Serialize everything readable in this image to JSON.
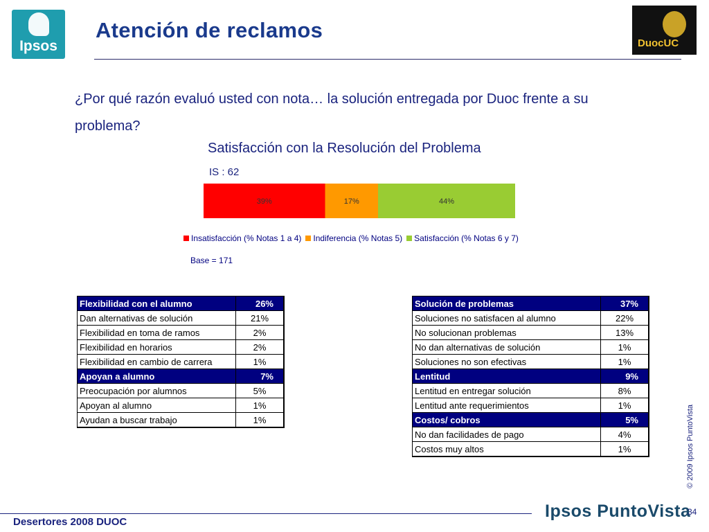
{
  "header": {
    "title": "Atención de reclamos",
    "ipsos_logo_text": "Ipsos",
    "duoc_logo_text": "DuocUC"
  },
  "question": "¿Por qué razón evaluó usted con nota… la solución entregada por Duoc frente a su  problema?",
  "chart_data": {
    "type": "bar",
    "orientation": "horizontal-stacked",
    "title": "Satisfacción con la Resolución del Problema",
    "subtitle": "IS :  62",
    "series": [
      {
        "name": "Insatisfacción (% Notas 1 a 4)",
        "values": [
          39
        ],
        "label": "39%",
        "color": "#ff0000"
      },
      {
        "name": "Indiferencia (% Notas 5)",
        "values": [
          17
        ],
        "label": "17%",
        "color": "#ff9900"
      },
      {
        "name": "Satisfacción (% Notas 6 y 7)",
        "values": [
          44
        ],
        "label": "44%",
        "color": "#99cc33"
      }
    ],
    "xlim": [
      0,
      100
    ],
    "grid": false,
    "legend": "bottom",
    "base": "Base = 171"
  },
  "table_left": {
    "rows": [
      {
        "label": "Flexibilidad con el alumno",
        "value": "26%",
        "header": true
      },
      {
        "label": "Dan alternativas de solución",
        "value": "21%"
      },
      {
        "label": "Flexibilidad en toma de ramos",
        "value": "2%"
      },
      {
        "label": "Flexibilidad en horarios",
        "value": "2%"
      },
      {
        "label": "Flexibilidad en cambio de carrera",
        "value": "1%"
      },
      {
        "label": "Apoyan a alumno",
        "value": "7%",
        "header": true
      },
      {
        "label": "Preocupación por alumnos",
        "value": "5%"
      },
      {
        "label": "Apoyan al alumno",
        "value": "1%"
      },
      {
        "label": "Ayudan a buscar trabajo",
        "value": "1%"
      }
    ]
  },
  "table_right": {
    "rows": [
      {
        "label": "Solución de problemas",
        "value": "37%",
        "header": true
      },
      {
        "label": "Soluciones no satisfacen al alumno",
        "value": "22%"
      },
      {
        "label": "No solucionan problemas",
        "value": "13%"
      },
      {
        "label": "No dan alternativas de solución",
        "value": "1%"
      },
      {
        "label": "Soluciones no son efectivas",
        "value": "1%"
      },
      {
        "label": "Lentitud",
        "value": "9%",
        "header": true
      },
      {
        "label": "Lentitud en entregar solución",
        "value": "8%"
      },
      {
        "label": "Lentitud ante requerimientos",
        "value": "1%"
      },
      {
        "label": "Costos/ cobros",
        "value": "5%",
        "header": true
      },
      {
        "label": "No dan facilidades de pago",
        "value": "4%"
      },
      {
        "label": "Costos muy altos",
        "value": "1%"
      }
    ]
  },
  "footer": {
    "left": "Desertores 2008 DUOC",
    "brand": "Ipsos PuntoVista",
    "page_number": "34",
    "copyright": "© 2009 Ipsos PuntoVista"
  }
}
